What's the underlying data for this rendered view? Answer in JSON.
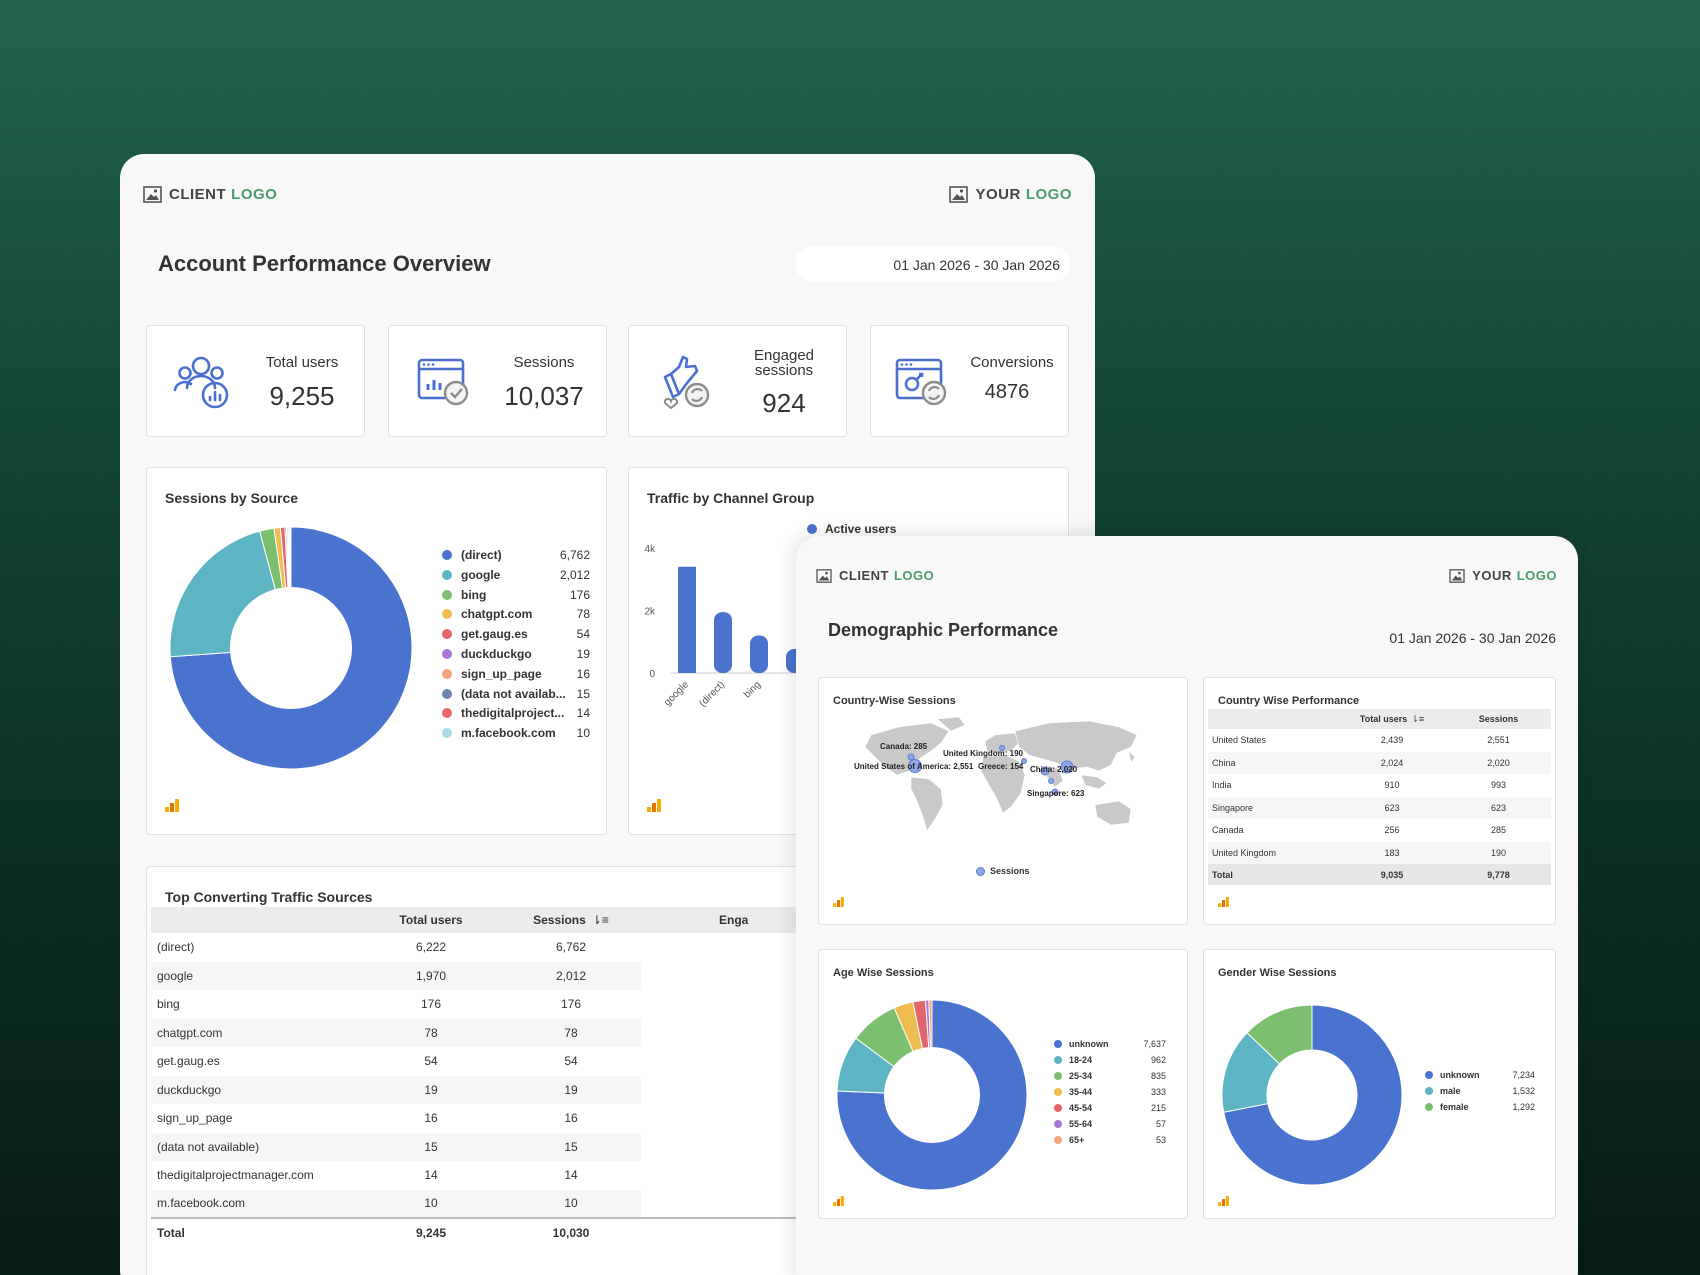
{
  "panel1": {
    "client_logo": {
      "word1": "CLIENT",
      "word2": "LOGO"
    },
    "your_logo": {
      "word1": "YOUR",
      "word2": "LOGO"
    },
    "title": "Account Performance Overview",
    "date_range": "01 Jan 2026 - 30 Jan 2026",
    "kpis": [
      {
        "label": "Total users",
        "value": "9,255",
        "icon": "users-chart-icon"
      },
      {
        "label": "Sessions",
        "value": "10,037",
        "icon": "browser-check-icon"
      },
      {
        "label": "Engaged sessions",
        "value": "924",
        "icon": "thumbs-up-refresh-icon"
      },
      {
        "label": "Conversions",
        "value": "4876",
        "icon": "browser-refresh-icon"
      }
    ],
    "sessions_by_source": {
      "title": "Sessions by Source",
      "legend": [
        {
          "label": "(direct)",
          "value": "6,762"
        },
        {
          "label": "google",
          "value": "2,012"
        },
        {
          "label": "bing",
          "value": "176"
        },
        {
          "label": "chatgpt.com",
          "value": "78"
        },
        {
          "label": "get.gaug.es",
          "value": "54"
        },
        {
          "label": "duckduckgo",
          "value": "19"
        },
        {
          "label": "sign_up_page",
          "value": "16"
        },
        {
          "label": "(data not availab...",
          "value": "15"
        },
        {
          "label": "thedigitalproject...",
          "value": "14"
        },
        {
          "label": "m.facebook.com",
          "value": "10"
        }
      ]
    },
    "traffic_by_channel": {
      "title": "Traffic by Channel Group",
      "legend": "Active users",
      "y_ticks": [
        "4k",
        "2k",
        "0"
      ],
      "x_labels": [
        "google",
        "(direct)",
        "bing"
      ]
    },
    "top_converting": {
      "title": "Top Converting Traffic Sources",
      "headers": [
        "",
        "Total users",
        "Sessions",
        "Enga"
      ],
      "rows": [
        [
          "(direct)",
          "6,222",
          "6,762"
        ],
        [
          "google",
          "1,970",
          "2,012"
        ],
        [
          "bing",
          "176",
          "176"
        ],
        [
          "chatgpt.com",
          "78",
          "78"
        ],
        [
          "get.gaug.es",
          "54",
          "54"
        ],
        [
          "duckduckgo",
          "19",
          "19"
        ],
        [
          "sign_up_page",
          "16",
          "16"
        ],
        [
          "(data not available)",
          "15",
          "15"
        ],
        [
          "thedigitalprojectmanager.com",
          "14",
          "14"
        ],
        [
          "m.facebook.com",
          "10",
          "10"
        ]
      ],
      "total": [
        "Total",
        "9,245",
        "10,030"
      ]
    }
  },
  "panel2": {
    "client_logo": {
      "word1": "CLIENT",
      "word2": "LOGO"
    },
    "your_logo": {
      "word1": "YOUR",
      "word2": "LOGO"
    },
    "title": "Demographic Performance",
    "date_range": "01 Jan 2026 - 30 Jan 2026",
    "country_sessions": {
      "title": "Country-Wise Sessions",
      "labels": [
        "Canada: 285",
        "United Kingdom: 190",
        "United States of America: 2,551",
        "Greece: 154",
        "China: 2,020",
        "Singapore: 623"
      ],
      "legend": "Sessions"
    },
    "country_performance": {
      "title": "Country Wise Performance",
      "headers": [
        "",
        "Total users",
        "Sessions"
      ],
      "rows": [
        [
          "United States",
          "2,439",
          "2,551"
        ],
        [
          "China",
          "2,024",
          "2,020"
        ],
        [
          "India",
          "910",
          "993"
        ],
        [
          "Singapore",
          "623",
          "623"
        ],
        [
          "Canada",
          "256",
          "285"
        ],
        [
          "United Kingdom",
          "183",
          "190"
        ]
      ],
      "total": [
        "Total",
        "9,035",
        "9,778"
      ]
    },
    "age_sessions": {
      "title": "Age Wise Sessions",
      "legend": [
        {
          "label": "unknown",
          "value": "7,637"
        },
        {
          "label": "18-24",
          "value": "962"
        },
        {
          "label": "25-34",
          "value": "835"
        },
        {
          "label": "35-44",
          "value": "333"
        },
        {
          "label": "45-54",
          "value": "215"
        },
        {
          "label": "55-64",
          "value": "57"
        },
        {
          "label": "65+",
          "value": "53"
        }
      ]
    },
    "gender_sessions": {
      "title": "Gender Wise Sessions",
      "legend": [
        {
          "label": "unknown",
          "value": "7,234"
        },
        {
          "label": "male",
          "value": "1,532"
        },
        {
          "label": "female",
          "value": "1,292"
        }
      ]
    }
  },
  "chart_data": [
    {
      "type": "pie",
      "title": "Sessions by Source",
      "categories": [
        "(direct)",
        "google",
        "bing",
        "chatgpt.com",
        "get.gaug.es",
        "duckduckgo",
        "sign_up_page",
        "(data not available)",
        "thedigitalprojectmanager.com",
        "m.facebook.com"
      ],
      "values": [
        6762,
        2012,
        176,
        78,
        54,
        19,
        16,
        15,
        14,
        10
      ]
    },
    {
      "type": "bar",
      "title": "Traffic by Channel Group",
      "categories": [
        "google",
        "(direct)",
        "bing"
      ],
      "series": [
        {
          "name": "Active users",
          "values": [
            3400,
            1950,
            1200
          ]
        }
      ],
      "ylim": [
        0,
        4000
      ]
    },
    {
      "type": "pie",
      "title": "Age Wise Sessions",
      "categories": [
        "unknown",
        "18-24",
        "25-34",
        "35-44",
        "45-54",
        "55-64",
        "65+"
      ],
      "values": [
        7637,
        962,
        835,
        333,
        215,
        57,
        53
      ]
    },
    {
      "type": "pie",
      "title": "Gender Wise Sessions",
      "categories": [
        "unknown",
        "male",
        "female"
      ],
      "values": [
        7234,
        1532,
        1292
      ]
    }
  ],
  "colors": {
    "brand_green": "#4a9c6d",
    "icon_blue": "#4a6fd0",
    "palette": [
      "#4a72cf",
      "#5db5c4",
      "#7cc06f",
      "#eebd52",
      "#e2656b",
      "#a67ad3",
      "#f1a67e",
      "#6e83ad",
      "#e8696a",
      "#a8dce5"
    ]
  }
}
